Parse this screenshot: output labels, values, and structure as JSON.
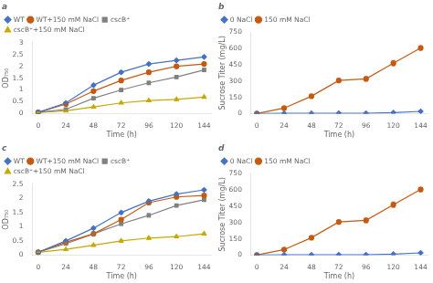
{
  "chart_data": [
    {
      "type": "line",
      "title": "a",
      "xlabel": "Time (h)",
      "ylabel": "OD₇₅₀",
      "x": [
        0,
        24,
        48,
        72,
        96,
        120,
        144
      ],
      "xlim": [
        -5,
        150
      ],
      "xticks": [
        0,
        24,
        48,
        72,
        96,
        120,
        144
      ],
      "ylim": [
        0,
        3.0
      ],
      "yticks": [
        0,
        0.5,
        1.0,
        1.5,
        2.0,
        2.5,
        3.0
      ],
      "grid": false,
      "legend": "upper left",
      "series": [
        {
          "name": "WT",
          "color": "#4472c4",
          "marker": "diamond",
          "values": [
            0.05,
            0.45,
            1.2,
            1.75,
            2.1,
            2.25,
            2.4
          ],
          "errors": [
            0.01,
            0.04,
            0.06,
            0.06,
            0.06,
            0.05,
            0.05
          ]
        },
        {
          "name": "WT+150 mM NaCl",
          "color": "#c55a11",
          "marker": "circle",
          "values": [
            0.05,
            0.4,
            0.95,
            1.4,
            1.75,
            2.0,
            2.1
          ],
          "errors": [
            0.01,
            0.03,
            0.05,
            0.07,
            0.07,
            0.06,
            0.06
          ]
        },
        {
          "name": "cscB⁺",
          "color": "#808080",
          "marker": "square",
          "values": [
            0.05,
            0.18,
            0.65,
            1.0,
            1.3,
            1.55,
            1.85
          ],
          "errors": [
            0.01,
            0.02,
            0.04,
            0.06,
            0.07,
            0.06,
            0.06
          ]
        },
        {
          "name": "cscB⁺+150 mM NaCl",
          "color": "#c8a800",
          "marker": "triangle",
          "values": [
            0.05,
            0.12,
            0.28,
            0.45,
            0.55,
            0.6,
            0.7
          ],
          "errors": [
            0.01,
            0.02,
            0.03,
            0.04,
            0.04,
            0.04,
            0.04
          ]
        }
      ]
    },
    {
      "type": "line",
      "title": "b",
      "xlabel": "Time (h)",
      "ylabel": "Sucrose Titer (mg/L)",
      "x": [
        0,
        24,
        48,
        72,
        96,
        120,
        144
      ],
      "xlim": [
        -5,
        150
      ],
      "xticks": [
        0,
        24,
        48,
        72,
        96,
        120,
        144
      ],
      "ylim": [
        0,
        750
      ],
      "yticks": [
        0,
        150,
        300,
        450,
        600,
        750
      ],
      "grid": false,
      "legend": "upper left",
      "series": [
        {
          "name": "0 NaCl",
          "color": "#4472c4",
          "marker": "diamond",
          "values": [
            0,
            2,
            2,
            3,
            3,
            8,
            20
          ],
          "errors": [
            0,
            1,
            1,
            1,
            1,
            2,
            5
          ]
        },
        {
          "name": "150 mM NaCl",
          "color": "#c55a11",
          "marker": "circle",
          "values": [
            0,
            50,
            160,
            305,
            320,
            465,
            605
          ],
          "errors": [
            0,
            8,
            12,
            15,
            20,
            25,
            20
          ]
        }
      ]
    },
    {
      "type": "line",
      "title": "c",
      "xlabel": "Time (h)",
      "ylabel": "OD₇₅₀",
      "x": [
        0,
        24,
        48,
        72,
        96,
        120,
        144
      ],
      "xlim": [
        -5,
        150
      ],
      "xticks": [
        0,
        24,
        48,
        72,
        96,
        120,
        144
      ],
      "ylim": [
        0,
        2.5
      ],
      "yticks": [
        0,
        0.5,
        1.0,
        1.5,
        2.0,
        2.5
      ],
      "grid": false,
      "legend": "upper left",
      "series": [
        {
          "name": "WT",
          "color": "#4472c4",
          "marker": "diamond",
          "values": [
            0.1,
            0.5,
            0.95,
            1.5,
            1.9,
            2.15,
            2.3
          ],
          "errors": [
            0.01,
            0.03,
            0.04,
            0.05,
            0.05,
            0.05,
            0.04
          ]
        },
        {
          "name": "WT+150 mM NaCl",
          "color": "#c55a11",
          "marker": "circle",
          "values": [
            0.1,
            0.45,
            0.75,
            1.25,
            1.85,
            2.05,
            2.1
          ],
          "errors": [
            0.01,
            0.03,
            0.04,
            0.06,
            0.05,
            0.05,
            0.05
          ]
        },
        {
          "name": "cscB⁺",
          "color": "#808080",
          "marker": "square",
          "values": [
            0.1,
            0.4,
            0.75,
            1.1,
            1.4,
            1.75,
            1.95
          ],
          "errors": [
            0.01,
            0.03,
            0.04,
            0.05,
            0.06,
            0.05,
            0.04
          ]
        },
        {
          "name": "cscB⁺+150 mM NaCl",
          "color": "#c8a800",
          "marker": "triangle",
          "values": [
            0.1,
            0.2,
            0.35,
            0.5,
            0.6,
            0.65,
            0.75
          ],
          "errors": [
            0.01,
            0.02,
            0.03,
            0.04,
            0.04,
            0.04,
            0.04
          ]
        }
      ]
    },
    {
      "type": "line",
      "title": "d",
      "xlabel": "Time (h)",
      "ylabel": "Sucrose Titer (mg/L)",
      "x": [
        0,
        24,
        48,
        72,
        96,
        120,
        144
      ],
      "xlim": [
        -5,
        150
      ],
      "xticks": [
        0,
        24,
        48,
        72,
        96,
        120,
        144
      ],
      "ylim": [
        0,
        750
      ],
      "yticks": [
        0,
        150,
        300,
        450,
        600,
        750
      ],
      "grid": false,
      "legend": "upper left",
      "series": [
        {
          "name": "0 NaCl",
          "color": "#4472c4",
          "marker": "diamond",
          "values": [
            0,
            2,
            2,
            3,
            3,
            8,
            20
          ],
          "errors": [
            0,
            1,
            1,
            1,
            1,
            2,
            5
          ]
        },
        {
          "name": "150 mM NaCl",
          "color": "#c55a11",
          "marker": "circle",
          "values": [
            0,
            50,
            160,
            305,
            320,
            465,
            605
          ],
          "errors": [
            0,
            8,
            12,
            15,
            20,
            25,
            20
          ]
        }
      ]
    }
  ]
}
